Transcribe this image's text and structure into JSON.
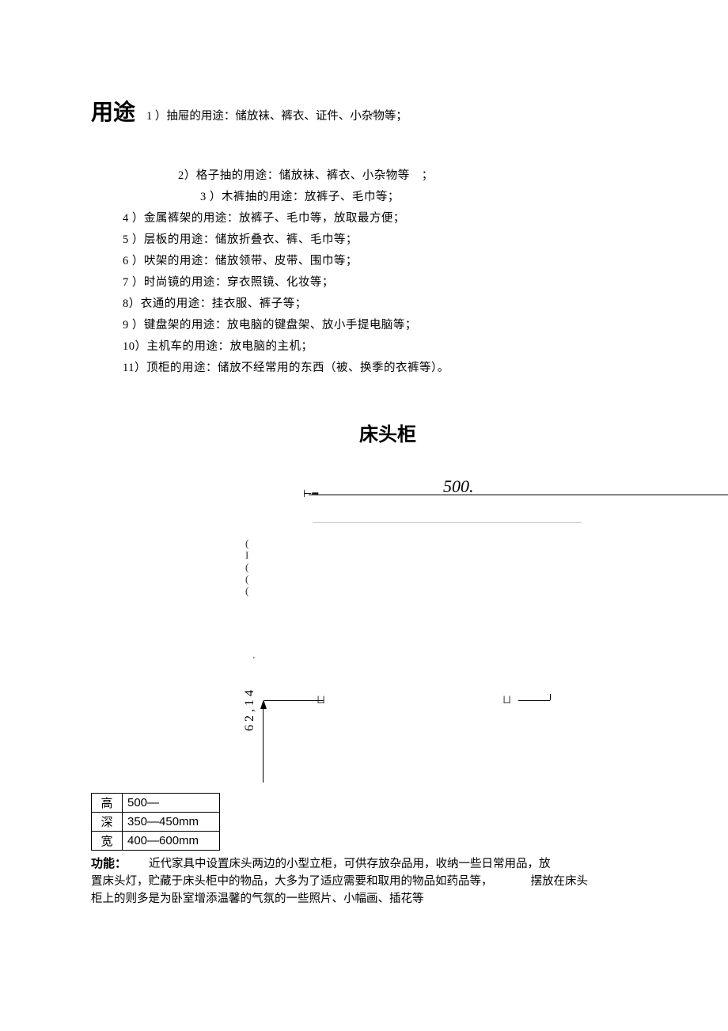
{
  "yongtu": {
    "heading": "用途",
    "first": "1 ）抽屉的用途：储放袜、裤衣、证件、小杂物等；",
    "item2": "2）格子抽的用途：储放袜、裤衣、小杂物等　；",
    "item3": "3 ）木裤抽的用途：放裤子、毛巾等；",
    "items": [
      "4 ）金属裤架的用途：放裤子、毛巾等，放取最方便；",
      "5 ）层板的用途：储放折叠衣、裤、毛巾等；",
      "6 ）吠架的用途：储放领带、皮带、围巾等；",
      "7 ）时尚镜的用途：穿衣照镜、化妆等；",
      "8）衣通的用途：挂衣服、裤子等；",
      "9 ）键盘架的用途：放电脑的键盘架、放小手提电脑等；",
      "10）主机车的用途：放电脑的主机；",
      "11）顶柜的用途：储放不经常用的东西（被、换季的衣裤等）。"
    ]
  },
  "nightstand": {
    "title": "床头柜",
    "dim_top": "500.",
    "dim_vert": "62,14",
    "paren_marks": "(\nI\n(\n(\n(",
    "corner_l": "ㄩ",
    "corner_r": "ㄩ",
    "table": {
      "rows": [
        {
          "label": "高",
          "value": "500—"
        },
        {
          "label": "深",
          "value": "350—450mm"
        },
        {
          "label": "宽",
          "value": "400—600mm"
        }
      ]
    },
    "gongneng_label": "功能：",
    "gongneng_text1": "近代家具中设置床头两边的小型立柜，可供存放杂品用，收纳一些日常用品，放",
    "gongneng_text2": "置床头灯，贮藏于床头柜中的物品，大多为了适应需要和取用的物品如药品等，",
    "gongneng_text3": "摆放在床头",
    "gongneng_text4": "柜上的则多是为卧室增添温馨的气氛的一些照片、小幅画、插花等"
  }
}
